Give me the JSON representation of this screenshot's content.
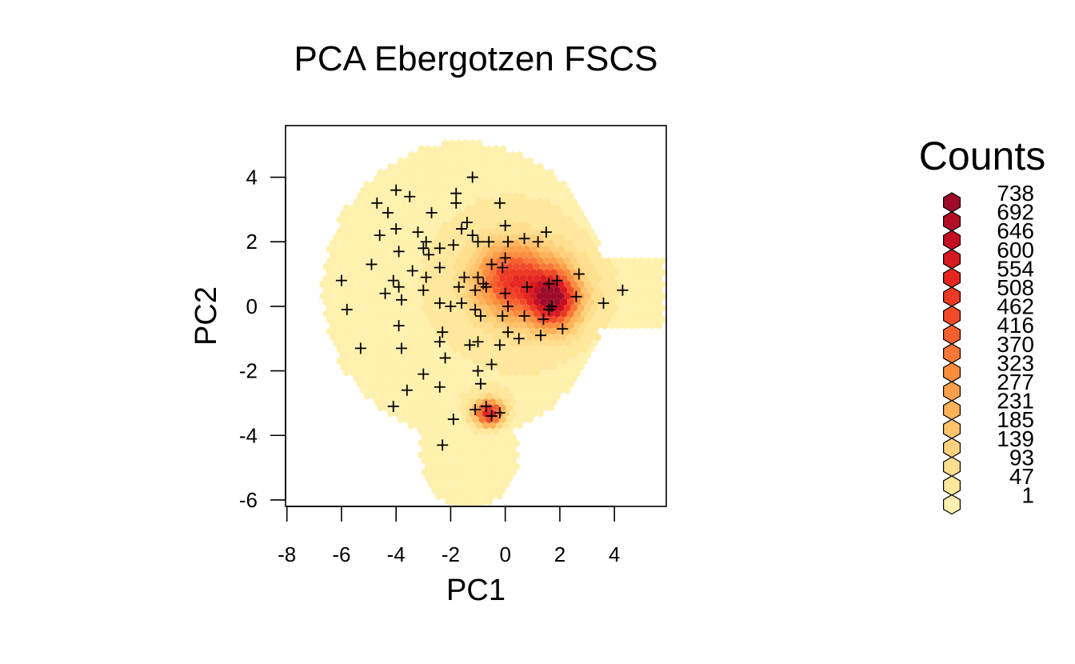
{
  "chart_data": {
    "type": "heatmap",
    "subtype": "hexbin with overlaid points",
    "title": "PCA Ebergotzen FSCS",
    "xlabel": "PC1",
    "ylabel": "PC2",
    "xlim": [
      -8.05,
      5.9
    ],
    "ylim": [
      -6.2,
      5.6
    ],
    "xticks": [
      "-8",
      "-6",
      "-4",
      "-2",
      "0",
      "2",
      "4"
    ],
    "yticks": [
      "-6",
      "-4",
      "-2",
      "0",
      "2",
      "4"
    ],
    "legend": {
      "title": "Counts",
      "position": "right",
      "levels": [
        {
          "label": "738",
          "color": "#9e0a2b"
        },
        {
          "label": "692",
          "color": "#b30c26"
        },
        {
          "label": "646",
          "color": "#c60e23"
        },
        {
          "label": "600",
          "color": "#d71a21"
        },
        {
          "label": "554",
          "color": "#e3261f"
        },
        {
          "label": "508",
          "color": "#ec3824"
        },
        {
          "label": "462",
          "color": "#f24a29"
        },
        {
          "label": "416",
          "color": "#f6602e"
        },
        {
          "label": "370",
          "color": "#f87736"
        },
        {
          "label": "323",
          "color": "#fa8d3e"
        },
        {
          "label": "277",
          "color": "#fca04a"
        },
        {
          "label": "231",
          "color": "#fdb25a"
        },
        {
          "label": "185",
          "color": "#fec36b"
        },
        {
          "label": "139",
          "color": "#fed27d"
        },
        {
          "label": "93",
          "color": "#ffde8d"
        },
        {
          "label": "47",
          "color": "#ffe79b"
        },
        {
          "label": "1",
          "color": "#fff0ad"
        }
      ]
    },
    "density_hotspots": [
      {
        "x": 1.8,
        "y": 0.2,
        "max_count": 738
      },
      {
        "x": -0.6,
        "y": -3.3,
        "max_count": 600
      },
      {
        "x": 0.2,
        "y": 0.9,
        "max_count": 370
      }
    ],
    "points": [
      [
        -1.2,
        4.0
      ],
      [
        -4.0,
        3.6
      ],
      [
        -3.5,
        3.4
      ],
      [
        -1.8,
        3.5
      ],
      [
        -4.7,
        3.2
      ],
      [
        -1.8,
        3.2
      ],
      [
        -0.2,
        3.2
      ],
      [
        -4.3,
        2.9
      ],
      [
        -2.7,
        2.9
      ],
      [
        -1.4,
        2.6
      ],
      [
        0.0,
        2.5
      ],
      [
        -4.0,
        2.4
      ],
      [
        -1.6,
        2.4
      ],
      [
        -4.6,
        2.2
      ],
      [
        -3.2,
        2.3
      ],
      [
        -2.4,
        1.8
      ],
      [
        1.5,
        2.3
      ],
      [
        -1.2,
        2.2
      ],
      [
        -0.6,
        2.0
      ],
      [
        0.1,
        2.0
      ],
      [
        0.7,
        2.1
      ],
      [
        -2.9,
        2.0
      ],
      [
        -1.9,
        1.9
      ],
      [
        -1.0,
        2.0
      ],
      [
        1.2,
        2.0
      ],
      [
        -3.0,
        1.8
      ],
      [
        -2.8,
        1.6
      ],
      [
        -3.9,
        1.7
      ],
      [
        -0.5,
        1.3
      ],
      [
        0.0,
        1.5
      ],
      [
        -4.9,
        1.3
      ],
      [
        -0.1,
        1.2
      ],
      [
        -3.4,
        1.1
      ],
      [
        -2.4,
        1.2
      ],
      [
        -2.9,
        0.9
      ],
      [
        2.7,
        1.0
      ],
      [
        -6.0,
        0.8
      ],
      [
        -1.5,
        0.9
      ],
      [
        -1.0,
        0.9
      ],
      [
        -0.8,
        0.7
      ],
      [
        -4.1,
        0.8
      ],
      [
        -3.9,
        0.6
      ],
      [
        -1.7,
        0.6
      ],
      [
        -1.1,
        0.5
      ],
      [
        -0.7,
        0.6
      ],
      [
        0.8,
        0.6
      ],
      [
        1.6,
        0.7
      ],
      [
        1.9,
        0.8
      ],
      [
        0.0,
        0.4
      ],
      [
        -4.4,
        0.4
      ],
      [
        -3.8,
        0.2
      ],
      [
        -3.0,
        0.5
      ],
      [
        2.6,
        0.3
      ],
      [
        4.3,
        0.5
      ],
      [
        -2.4,
        0.1
      ],
      [
        -2.0,
        0.0
      ],
      [
        -1.6,
        0.1
      ],
      [
        -1.1,
        -0.1
      ],
      [
        0.1,
        0.0
      ],
      [
        1.6,
        -0.1
      ],
      [
        1.7,
        0.0
      ],
      [
        -5.8,
        -0.1
      ],
      [
        3.6,
        0.1
      ],
      [
        -0.9,
        -0.3
      ],
      [
        -0.1,
        -0.3
      ],
      [
        0.7,
        -0.3
      ],
      [
        1.4,
        -0.4
      ],
      [
        2.1,
        -0.7
      ],
      [
        -3.9,
        -0.6
      ],
      [
        -2.3,
        -0.8
      ],
      [
        0.1,
        -0.8
      ],
      [
        0.5,
        -1.0
      ],
      [
        1.3,
        -0.9
      ],
      [
        -2.4,
        -1.1
      ],
      [
        -1.3,
        -1.2
      ],
      [
        -1.0,
        -1.1
      ],
      [
        -0.2,
        -1.2
      ],
      [
        -5.3,
        -1.3
      ],
      [
        -3.8,
        -1.3
      ],
      [
        -2.2,
        -1.6
      ],
      [
        -0.5,
        -1.8
      ],
      [
        -3.0,
        -2.1
      ],
      [
        -1.0,
        -2.0
      ],
      [
        -0.9,
        -2.4
      ],
      [
        -2.4,
        -2.5
      ],
      [
        -3.6,
        -2.6
      ],
      [
        -4.1,
        -3.1
      ],
      [
        -1.1,
        -3.2
      ],
      [
        -0.7,
        -3.1
      ],
      [
        -0.2,
        -3.3
      ],
      [
        -0.5,
        -3.4
      ],
      [
        -1.9,
        -3.5
      ],
      [
        -2.3,
        -4.3
      ]
    ]
  }
}
